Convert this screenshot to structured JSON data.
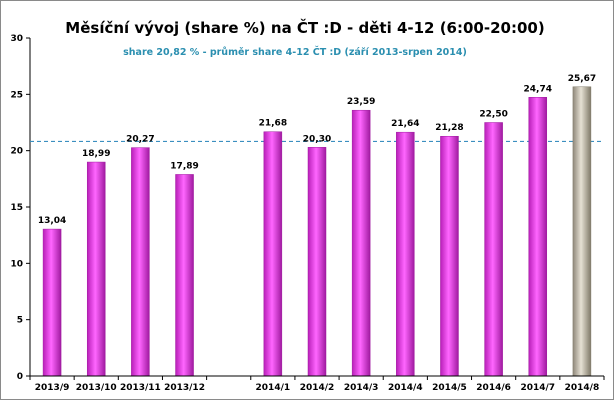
{
  "chart_data": {
    "type": "bar",
    "title": "Měsíční vývoj (share %)  na ČT :D - děti 4-12 (6:00-20:00)",
    "reference_line": {
      "value": 20.82,
      "label": "share 20,82 % - průměr share 4-12  ČT :D (září 2013-srpen 2014)",
      "color": "#3b8fc0",
      "style": "dashed"
    },
    "categories": [
      "2013/9",
      "2013/10",
      "2013/11",
      "2013/12",
      "",
      "2014/1",
      "2014/2",
      "2014/3",
      "2014/4",
      "2014/5",
      "2014/6",
      "2014/7",
      "2014/8"
    ],
    "values": [
      13.04,
      18.99,
      20.27,
      17.89,
      null,
      21.68,
      20.3,
      23.59,
      21.64,
      21.28,
      22.5,
      24.74,
      25.67
    ],
    "value_labels": [
      "13,04",
      "18,99",
      "20,27",
      "17,89",
      "",
      "21,68",
      "20,30",
      "23,59",
      "21,64",
      "21,28",
      "22,50",
      "24,74",
      "25,67"
    ],
    "highlight_last": true,
    "ylim": [
      0,
      30
    ],
    "yticks": [
      0,
      5,
      10,
      15,
      20,
      25,
      30
    ],
    "grid": false,
    "xlabel": "",
    "ylabel": "",
    "colors": {
      "bar": "#e62ee6",
      "bar_dark": "#a01aa0",
      "highlight": "#c9c2b0",
      "highlight_dark": "#7f7968",
      "axis": "#000000"
    }
  }
}
